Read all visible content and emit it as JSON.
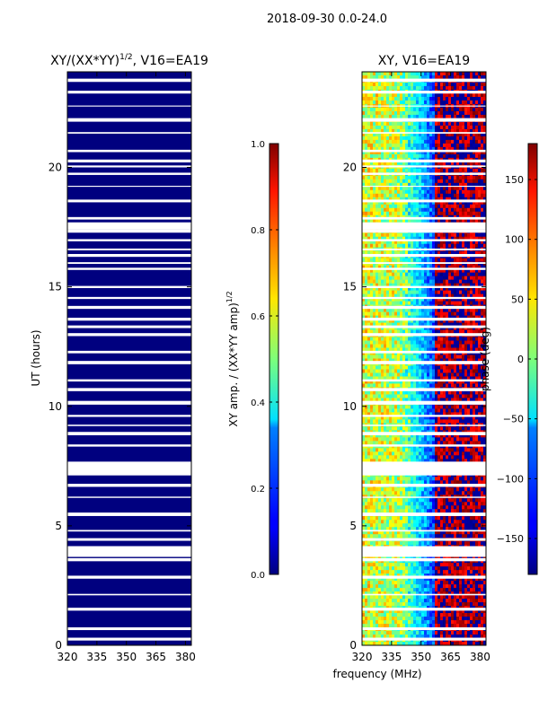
{
  "figure": {
    "suptitle": "2018-09-30 0.0-24.0",
    "xlabel": "frequency (MHz)"
  },
  "chart_data": [
    {
      "type": "heatmap",
      "title_main": "XY/(XX*YY)",
      "title_sup": "1/2",
      "title_rest": ", V16=EA19",
      "xlabel": "",
      "ylabel": "UT (hours)",
      "xlim": [
        320,
        383
      ],
      "ylim": [
        0,
        24
      ],
      "x_ticks": [
        320,
        335,
        350,
        365,
        380
      ],
      "y_ticks": [
        0,
        5,
        10,
        15,
        20
      ],
      "value_description": "uniform value near 0.0 (dark blue) with white gaps for flagged time intervals",
      "colorbar": {
        "label_main": "XY amp. / (XX*YY amp)",
        "label_sup": "1/2",
        "range": [
          0.0,
          1.0
        ],
        "ticks": [
          "0.0",
          "0.2",
          "0.4",
          "0.6",
          "0.8",
          "1.0"
        ],
        "colormap": "jet"
      }
    },
    {
      "type": "heatmap",
      "title": "XY, V16=EA19",
      "xlabel": "frequency (MHz)",
      "ylabel": "",
      "xlim": [
        320,
        383
      ],
      "ylim": [
        0,
        24
      ],
      "x_ticks": [
        320,
        335,
        350,
        365,
        380
      ],
      "y_ticks": [
        0,
        5,
        10,
        15,
        20
      ],
      "value_description": "phase wraps with frequency: about +20 to +60 deg near 320-340 MHz, about -100 deg near 345-355 MHz, about +150 to +180 deg above 360 MHz; white gaps at flagged times",
      "colorbar": {
        "label": "phase (deg)",
        "range": [
          -180,
          180
        ],
        "ticks": [
          "150",
          "100",
          "50",
          "0",
          "−50",
          "−100",
          "−150"
        ],
        "colormap": "jet"
      }
    }
  ]
}
